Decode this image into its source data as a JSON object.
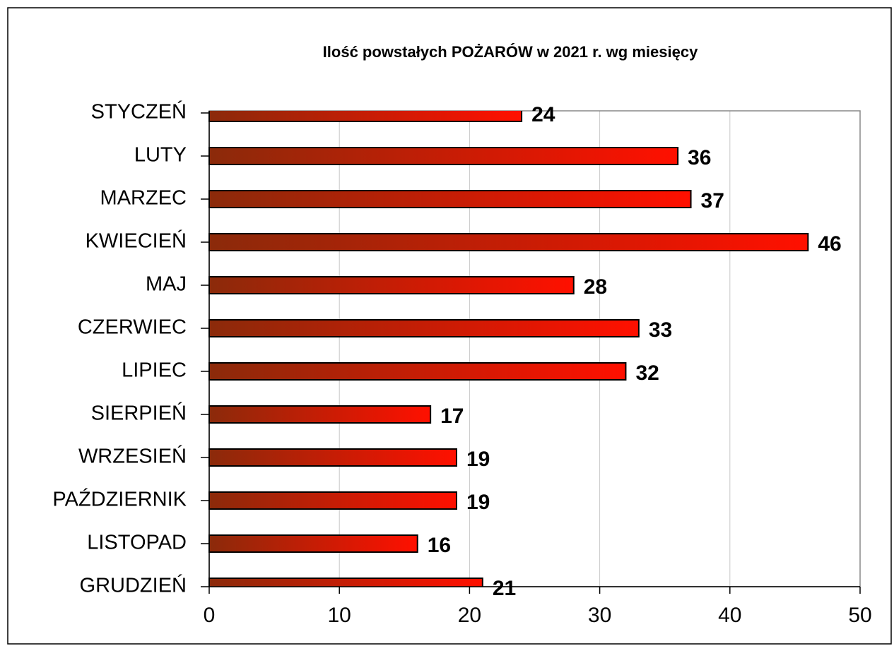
{
  "chart_data": {
    "type": "bar",
    "orientation": "horizontal",
    "title": "Ilość powstałych POŻARÓW w 2021 r. wg miesięcy",
    "categories": [
      "STYCZEŃ",
      "LUTY",
      "MARZEC",
      "KWIECIEŃ",
      "MAJ",
      "CZERWIEC",
      "LIPIEC",
      "SIERPIEŃ",
      "WRZESIEŃ",
      "PAŹDZIERNIK",
      "LISTOPAD",
      "GRUDZIEŃ"
    ],
    "values": [
      24,
      36,
      37,
      46,
      28,
      33,
      32,
      17,
      19,
      19,
      16,
      21
    ],
    "color": [
      "#8b2a0a",
      "#ff1000"
    ],
    "xlim": [
      0,
      50
    ],
    "xticks": [
      0,
      10,
      20,
      30,
      40,
      50
    ],
    "grid": true
  }
}
